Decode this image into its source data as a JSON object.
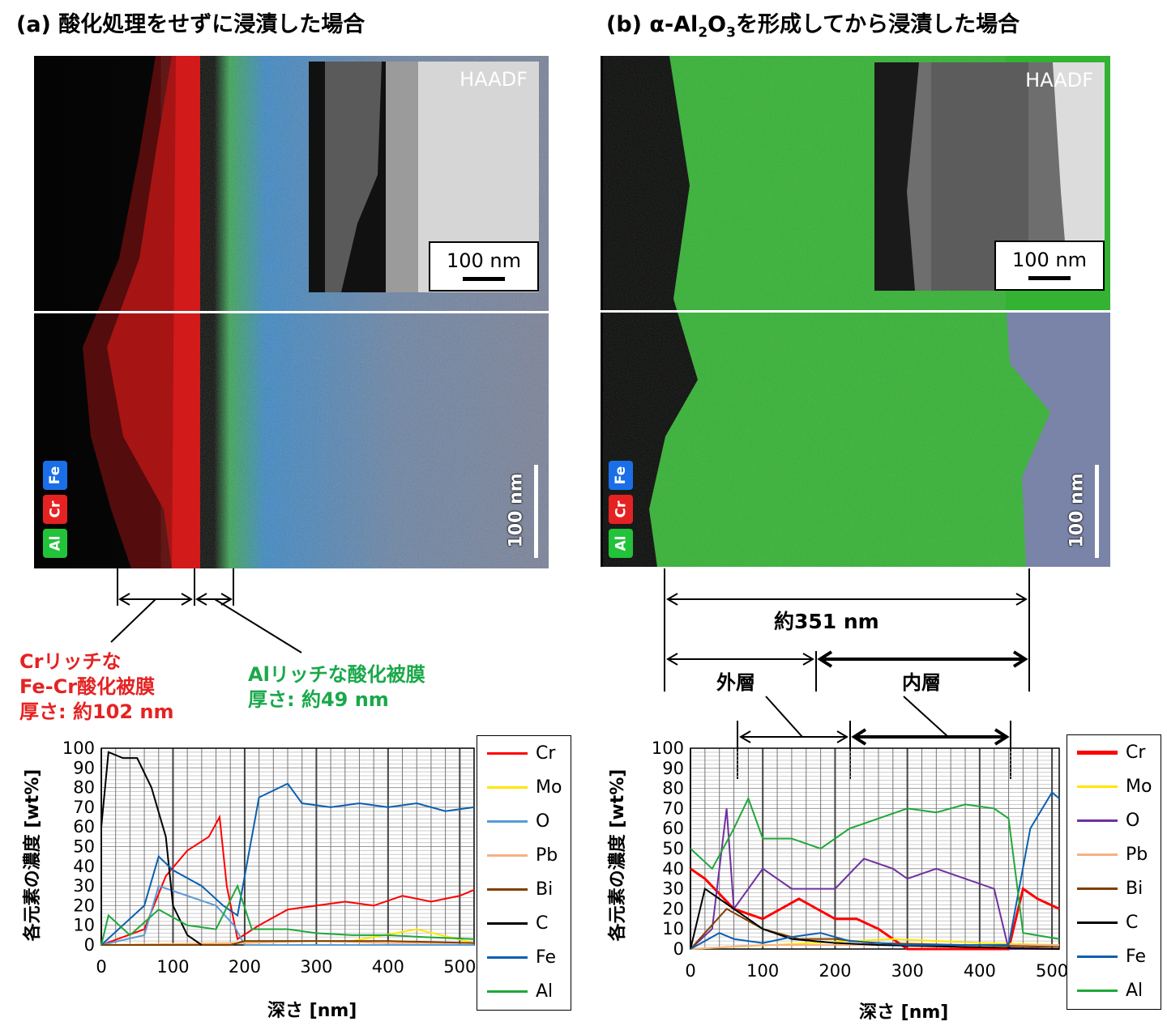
{
  "panel_a": {
    "title": "(a) 酸化処理をせずに浸漬した場合",
    "inset_label": "HAADF",
    "inset_scale": "100 nm",
    "map_scale": "100 nm",
    "element_tags": [
      {
        "text": "Fe",
        "color": "#1a6fe8"
      },
      {
        "text": "Cr",
        "color": "#e52222"
      },
      {
        "text": "Al",
        "color": "#22c23a"
      }
    ],
    "note_cr": [
      "Crリッチな",
      "Fe-Cr酸化被膜",
      "厚さ: 約102 nm"
    ],
    "note_al": [
      "Alリッチな酸化被膜",
      "厚さ: 約49 nm"
    ],
    "note_cr_color": "#e52222",
    "note_al_color": "#1aa84a"
  },
  "panel_b": {
    "title_prefix": "(b) α-Al",
    "title_sub1": "2",
    "title_mid": "O",
    "title_sub2": "3",
    "title_suffix": "を形成してから浸漬した場合",
    "inset_label": "HAADF",
    "inset_scale": "100 nm",
    "map_scale": "100 nm",
    "element_tags": [
      {
        "text": "Fe",
        "color": "#1a6fe8"
      },
      {
        "text": "Cr",
        "color": "#e52222"
      },
      {
        "text": "Al",
        "color": "#22c23a"
      }
    ],
    "total_thickness": "約351 nm",
    "outer_layer": "外層",
    "inner_layer": "内層"
  },
  "chart_data": [
    {
      "type": "line",
      "title": "",
      "xlabel": "深さ [nm]",
      "ylabel": "各元素の濃度 [wt%]",
      "xlim": [
        0,
        520
      ],
      "ylim": [
        0,
        100
      ],
      "xticks": [
        "0",
        "100",
        "200",
        "300",
        "400",
        "500"
      ],
      "yticks": [
        "0",
        "10",
        "20",
        "30",
        "40",
        "50",
        "60",
        "70",
        "80",
        "90",
        "100"
      ],
      "series": [
        {
          "name": "Cr",
          "color": "#ff0000",
          "x": [
            0,
            60,
            90,
            120,
            150,
            165,
            175,
            190,
            220,
            260,
            300,
            340,
            380,
            420,
            460,
            500,
            520
          ],
          "values": [
            0,
            8,
            35,
            48,
            55,
            65,
            30,
            3,
            10,
            18,
            20,
            22,
            20,
            25,
            22,
            25,
            28
          ]
        },
        {
          "name": "Mo",
          "color": "#ffe600",
          "x": [
            0,
            180,
            250,
            350,
            440,
            520
          ],
          "values": [
            0,
            1,
            2,
            2,
            8,
            1
          ]
        },
        {
          "name": "O",
          "color": "#5b9bd5",
          "x": [
            0,
            60,
            80,
            120,
            160,
            185,
            200,
            520
          ],
          "values": [
            0,
            5,
            30,
            25,
            20,
            10,
            0,
            0
          ]
        },
        {
          "name": "Pb",
          "color": "#f4b183",
          "x": [
            0,
            200,
            300,
            400,
            520
          ],
          "values": [
            0,
            1,
            2,
            1,
            1
          ]
        },
        {
          "name": "Bi",
          "color": "#7f3f00",
          "x": [
            0,
            180,
            200,
            300,
            400,
            520
          ],
          "values": [
            0,
            0,
            2,
            2,
            2,
            1
          ]
        },
        {
          "name": "C",
          "color": "#000000",
          "x": [
            0,
            10,
            30,
            50,
            70,
            90,
            100,
            120,
            140
          ],
          "values": [
            60,
            98,
            95,
            95,
            80,
            55,
            20,
            5,
            0
          ]
        },
        {
          "name": "Fe",
          "color": "#0a60b0",
          "x": [
            0,
            60,
            80,
            100,
            140,
            170,
            190,
            220,
            260,
            280,
            320,
            360,
            400,
            440,
            480,
            520
          ],
          "values": [
            0,
            20,
            45,
            38,
            30,
            20,
            15,
            75,
            82,
            72,
            70,
            72,
            70,
            72,
            68,
            70
          ]
        },
        {
          "name": "Al",
          "color": "#1fa83a",
          "x": [
            0,
            10,
            40,
            80,
            120,
            160,
            190,
            210,
            260,
            300,
            350,
            400,
            450,
            520
          ],
          "values": [
            0,
            15,
            5,
            18,
            10,
            8,
            30,
            8,
            8,
            6,
            5,
            5,
            4,
            3
          ]
        }
      ]
    },
    {
      "type": "line",
      "title": "",
      "xlabel": "深さ [nm]",
      "ylabel": "各元素の濃度 [wt%]",
      "xlim": [
        0,
        510
      ],
      "ylim": [
        0,
        100
      ],
      "xticks": [
        "0",
        "100",
        "200",
        "300",
        "400",
        "500"
      ],
      "yticks": [
        "0",
        "10",
        "20",
        "30",
        "40",
        "50",
        "60",
        "70",
        "80",
        "90",
        "100"
      ],
      "series": [
        {
          "name": "Cr",
          "color": "#ff0000",
          "x": [
            0,
            20,
            60,
            100,
            150,
            200,
            230,
            260,
            300,
            400,
            440,
            460,
            480,
            510
          ],
          "values": [
            40,
            35,
            20,
            15,
            25,
            15,
            15,
            10,
            0,
            0,
            0,
            30,
            25,
            20
          ],
          "width": 3
        },
        {
          "name": "Mo",
          "color": "#ffe600",
          "x": [
            0,
            280,
            400,
            510
          ],
          "values": [
            0,
            5,
            3,
            2
          ]
        },
        {
          "name": "O",
          "color": "#7030a0",
          "x": [
            0,
            30,
            50,
            60,
            100,
            140,
            200,
            240,
            280,
            300,
            340,
            380,
            420,
            440,
            510
          ],
          "values": [
            0,
            10,
            70,
            20,
            40,
            30,
            30,
            45,
            40,
            35,
            40,
            35,
            30,
            0,
            0
          ]
        },
        {
          "name": "Pb",
          "color": "#f4b183",
          "x": [
            0,
            100,
            200,
            300,
            400,
            510
          ],
          "values": [
            0,
            2,
            2,
            2,
            2,
            2
          ]
        },
        {
          "name": "Bi",
          "color": "#7f3f00",
          "x": [
            0,
            50,
            100,
            150,
            200,
            250,
            510
          ],
          "values": [
            0,
            20,
            10,
            5,
            5,
            3,
            1
          ]
        },
        {
          "name": "C",
          "color": "#000000",
          "x": [
            0,
            20,
            40,
            60,
            100,
            140,
            200,
            260,
            510
          ],
          "values": [
            0,
            30,
            25,
            20,
            10,
            5,
            3,
            2,
            0
          ]
        },
        {
          "name": "Fe",
          "color": "#0a60b0",
          "x": [
            0,
            40,
            60,
            100,
            140,
            180,
            220,
            260,
            300,
            400,
            440,
            470,
            500,
            510
          ],
          "values": [
            0,
            8,
            5,
            3,
            6,
            8,
            4,
            3,
            2,
            2,
            2,
            60,
            78,
            75
          ]
        },
        {
          "name": "Al",
          "color": "#1fa83a",
          "x": [
            0,
            30,
            60,
            80,
            100,
            140,
            180,
            220,
            260,
            300,
            340,
            380,
            420,
            440,
            460,
            510
          ],
          "values": [
            50,
            40,
            60,
            75,
            55,
            55,
            50,
            60,
            65,
            70,
            68,
            72,
            70,
            65,
            8,
            5
          ]
        }
      ]
    }
  ]
}
